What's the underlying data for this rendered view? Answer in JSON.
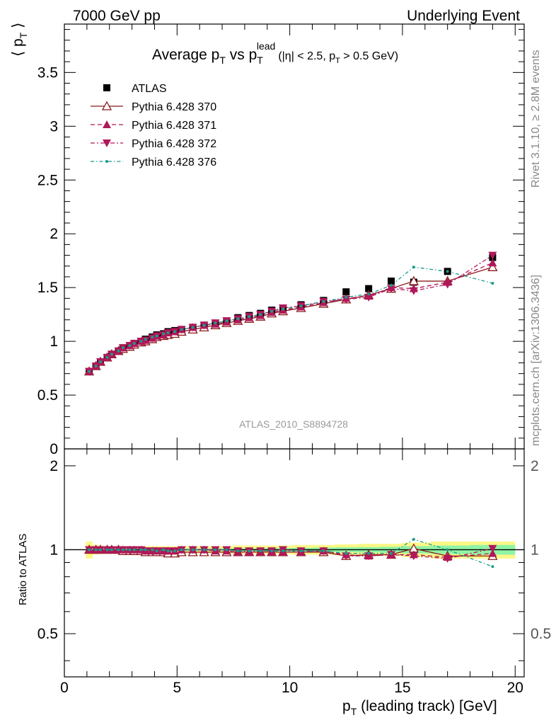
{
  "header": {
    "left": "7000 GeV pp",
    "right": "Underlying Event"
  },
  "title": {
    "main": "Average p",
    "main_sub": "T",
    "vs": " vs p",
    "vs_sub": "T",
    "vs_sup": "lead",
    "cuts": "(|η| < 2.5, p",
    "cuts_sub": "T",
    "cuts_end": " > 0.5 GeV)"
  },
  "side_labels": {
    "rivet": "Rivet 3.1.10, ≥ 2.8M events",
    "mcplots": "mcplots.cern.ch [arXiv:1306.3436]"
  },
  "watermark": "ATLAS_2010_S8894728",
  "axes": {
    "ylabel_main": "⟨ p",
    "ylabel_main_sub": "T",
    "ylabel_main_end": " ⟩",
    "ylabel_ratio": "Ratio to ATLAS",
    "xlabel": "p",
    "xlabel_sub": "T",
    "xlabel_end": " (leading track) [GeV]"
  },
  "chart_data": [
    {
      "type": "scatter",
      "panel": "main",
      "xlim": [
        0,
        20.4
      ],
      "ylim": [
        0,
        3.95
      ],
      "xticks": [
        0,
        5,
        10,
        15,
        20
      ],
      "xtick_labels": [
        "0",
        "5",
        "10",
        "15",
        "20"
      ],
      "yticks": [
        0,
        0.5,
        1,
        1.5,
        2,
        2.5,
        3,
        3.5
      ],
      "ytick_labels": [
        "0",
        "0.5",
        "1",
        "1.5",
        "2",
        "2.5",
        "3",
        "3.5"
      ],
      "legend_position": "top-left",
      "x": [
        1.1,
        1.4,
        1.6,
        1.9,
        2.1,
        2.4,
        2.6,
        2.9,
        3.1,
        3.4,
        3.6,
        3.9,
        4.1,
        4.4,
        4.6,
        4.9,
        5.2,
        5.7,
        6.2,
        6.7,
        7.2,
        7.7,
        8.2,
        8.7,
        9.2,
        9.7,
        10.5,
        11.5,
        12.5,
        13.5,
        14.5,
        15.5,
        17.0,
        19.0
      ],
      "series": [
        {
          "name": "ATLAS",
          "marker": "square",
          "color": "#000000",
          "values": [
            0.72,
            0.77,
            0.81,
            0.85,
            0.88,
            0.91,
            0.94,
            0.96,
            0.98,
            1.0,
            1.02,
            1.04,
            1.06,
            1.07,
            1.09,
            1.1,
            1.11,
            1.13,
            1.15,
            1.17,
            1.19,
            1.22,
            1.24,
            1.26,
            1.29,
            1.31,
            1.34,
            1.38,
            1.46,
            1.49,
            1.56,
            1.55,
            1.65,
            1.78
          ]
        },
        {
          "name": "Pythia 6.428 370",
          "marker": "triangle-up-open",
          "color": "#8b1a1a",
          "line": "solid",
          "values": [
            0.72,
            0.77,
            0.81,
            0.85,
            0.88,
            0.91,
            0.93,
            0.95,
            0.97,
            0.99,
            1.0,
            1.02,
            1.04,
            1.05,
            1.06,
            1.07,
            1.09,
            1.11,
            1.13,
            1.15,
            1.17,
            1.19,
            1.21,
            1.23,
            1.26,
            1.28,
            1.31,
            1.35,
            1.39,
            1.43,
            1.49,
            1.56,
            1.56,
            1.69
          ]
        },
        {
          "name": "Pythia 6.428 371",
          "marker": "triangle-up",
          "color": "#b0185a",
          "line": "dashed",
          "values": [
            0.72,
            0.77,
            0.81,
            0.85,
            0.88,
            0.91,
            0.94,
            0.96,
            0.98,
            1.0,
            1.01,
            1.03,
            1.05,
            1.06,
            1.08,
            1.09,
            1.11,
            1.13,
            1.15,
            1.16,
            1.18,
            1.2,
            1.22,
            1.24,
            1.27,
            1.29,
            1.32,
            1.36,
            1.4,
            1.42,
            1.5,
            1.49,
            1.55,
            1.73
          ]
        },
        {
          "name": "Pythia 6.428 372",
          "marker": "triangle-down",
          "color": "#b0185a",
          "line": "dashdot",
          "values": [
            0.72,
            0.77,
            0.81,
            0.85,
            0.88,
            0.91,
            0.94,
            0.96,
            0.98,
            1.0,
            1.01,
            1.03,
            1.05,
            1.06,
            1.08,
            1.09,
            1.11,
            1.13,
            1.15,
            1.17,
            1.19,
            1.21,
            1.23,
            1.25,
            1.28,
            1.31,
            1.33,
            1.37,
            1.39,
            1.41,
            1.49,
            1.47,
            1.53,
            1.8
          ]
        },
        {
          "name": "Pythia 6.428 376",
          "marker": "dot",
          "color": "#1a9b8a",
          "line": "dashdot",
          "values": [
            0.72,
            0.77,
            0.81,
            0.85,
            0.88,
            0.91,
            0.94,
            0.96,
            0.98,
            1.0,
            1.02,
            1.04,
            1.05,
            1.07,
            1.08,
            1.09,
            1.11,
            1.13,
            1.15,
            1.17,
            1.19,
            1.21,
            1.23,
            1.25,
            1.28,
            1.3,
            1.33,
            1.37,
            1.41,
            1.44,
            1.52,
            1.69,
            1.65,
            1.54
          ]
        }
      ]
    },
    {
      "type": "scatter",
      "panel": "ratio",
      "xlim": [
        0,
        20.4
      ],
      "ylim": [
        0.35,
        2.3
      ],
      "yticks": [
        0.5,
        1,
        2
      ],
      "ytick_labels": [
        "0.5",
        "1",
        "2"
      ],
      "reference_line": 1,
      "x": [
        1.1,
        1.4,
        1.6,
        1.9,
        2.1,
        2.4,
        2.6,
        2.9,
        3.1,
        3.4,
        3.6,
        3.9,
        4.1,
        4.4,
        4.6,
        4.9,
        5.2,
        5.7,
        6.2,
        6.7,
        7.2,
        7.7,
        8.2,
        8.7,
        9.2,
        9.7,
        10.5,
        11.5,
        12.5,
        13.5,
        14.5,
        15.5,
        17.0,
        19.0
      ],
      "band_data_stat_syst": [
        0.07,
        0.04,
        0.035,
        0.03,
        0.03,
        0.03,
        0.03,
        0.03,
        0.03,
        0.03,
        0.03,
        0.03,
        0.03,
        0.03,
        0.03,
        0.03,
        0.03,
        0.03,
        0.03,
        0.03,
        0.03,
        0.035,
        0.035,
        0.035,
        0.035,
        0.035,
        0.04,
        0.04,
        0.045,
        0.05,
        0.05,
        0.06,
        0.07,
        0.07
      ],
      "band_data_stat": [
        0.02,
        0.015,
        0.012,
        0.01,
        0.01,
        0.01,
        0.01,
        0.01,
        0.01,
        0.01,
        0.01,
        0.01,
        0.01,
        0.01,
        0.01,
        0.01,
        0.01,
        0.01,
        0.01,
        0.01,
        0.01,
        0.012,
        0.012,
        0.012,
        0.014,
        0.014,
        0.016,
        0.018,
        0.02,
        0.022,
        0.025,
        0.03,
        0.035,
        0.04
      ],
      "series": [
        {
          "name": "Pythia 6.428 370",
          "values": [
            1.0,
            1.0,
            1.0,
            1.0,
            1.0,
            1.0,
            0.99,
            0.99,
            0.99,
            0.99,
            0.98,
            0.98,
            0.98,
            0.98,
            0.97,
            0.97,
            0.98,
            0.98,
            0.98,
            0.98,
            0.98,
            0.98,
            0.98,
            0.98,
            0.98,
            0.98,
            0.98,
            0.98,
            0.95,
            0.96,
            0.96,
            1.01,
            0.95,
            0.95
          ]
        },
        {
          "name": "Pythia 6.428 371",
          "values": [
            1.0,
            1.0,
            1.0,
            1.0,
            1.0,
            1.0,
            1.0,
            1.0,
            1.0,
            1.0,
            0.99,
            0.99,
            0.99,
            0.99,
            0.99,
            0.99,
            1.0,
            1.0,
            1.0,
            0.99,
            0.99,
            0.98,
            0.98,
            0.98,
            0.98,
            0.98,
            0.98,
            0.99,
            0.96,
            0.95,
            0.96,
            0.96,
            0.94,
            0.97
          ]
        },
        {
          "name": "Pythia 6.428 372",
          "values": [
            1.0,
            1.0,
            1.0,
            1.0,
            1.0,
            1.0,
            1.0,
            1.0,
            1.0,
            1.0,
            0.99,
            0.99,
            0.99,
            0.99,
            0.99,
            0.99,
            1.0,
            1.0,
            1.0,
            1.0,
            1.0,
            0.99,
            0.99,
            0.99,
            0.99,
            1.0,
            0.99,
            0.99,
            0.95,
            0.95,
            0.96,
            0.95,
            0.93,
            1.01
          ]
        },
        {
          "name": "Pythia 6.428 376",
          "values": [
            1.0,
            1.0,
            1.0,
            1.0,
            1.0,
            1.0,
            1.0,
            1.0,
            1.0,
            1.0,
            1.0,
            1.0,
            0.99,
            1.0,
            0.99,
            0.99,
            1.0,
            1.0,
            1.0,
            1.0,
            1.0,
            0.99,
            0.99,
            0.99,
            0.99,
            0.99,
            0.99,
            0.99,
            0.97,
            0.97,
            0.97,
            1.09,
            1.0,
            0.87
          ]
        }
      ]
    }
  ],
  "colors": {
    "data": "#000000",
    "s370": "#8b1a1a",
    "s371": "#b0185a",
    "s372": "#b0185a",
    "s376": "#1a9b8a",
    "band_outer": "#fbf886",
    "band_inner": "#8ff4a4"
  }
}
